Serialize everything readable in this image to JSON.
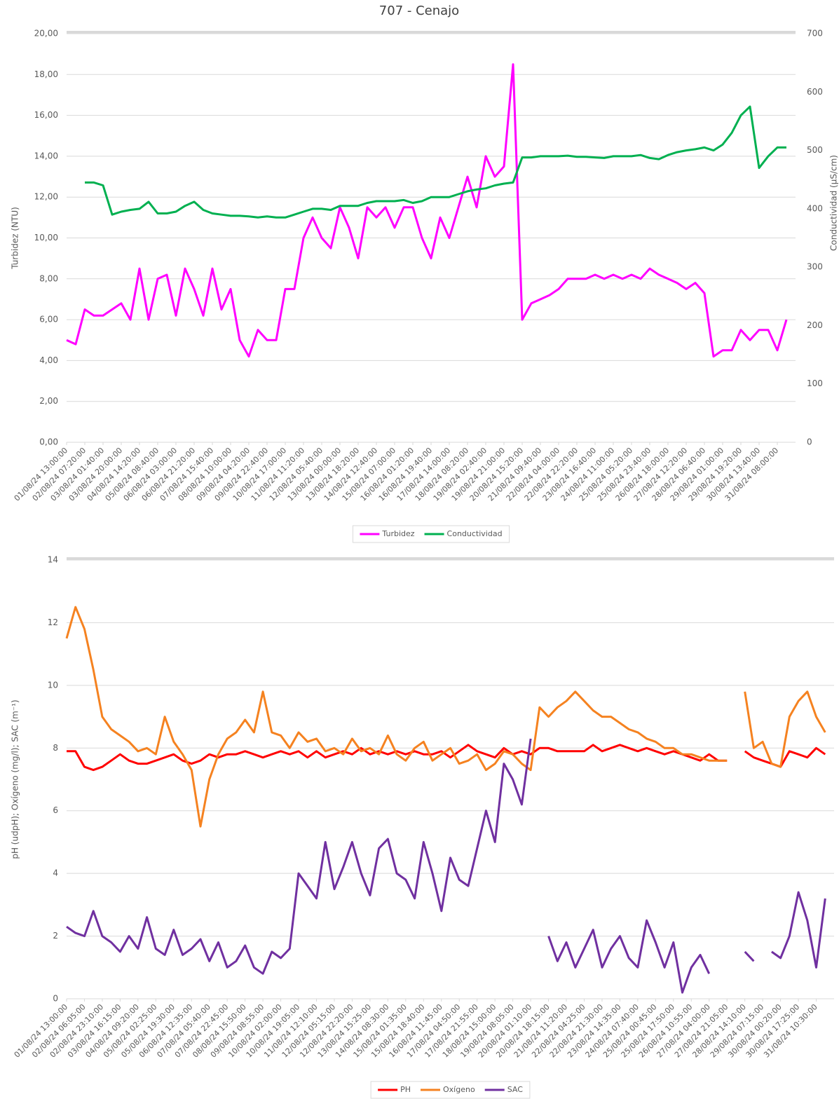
{
  "chart_data": [
    {
      "type": "line",
      "title": "707 - Cenajo",
      "ylabel": "Turbidez (NTU)",
      "y2label": "Conductividad (µS/cm)",
      "categories": [
        "01/08/24 13:00:00",
        null,
        "02/08/24 07:20:00",
        null,
        "03/08/24 01:40:00",
        null,
        "03/08/24 20:00:00",
        null,
        "04/08/24 14:20:00",
        null,
        "05/08/24 08:40:00",
        null,
        "06/08/24 03:00:00",
        null,
        "06/08/24 21:20:00",
        null,
        "07/08/24 15:40:00",
        null,
        "08/08/24 10:00:00",
        null,
        "09/08/24 04:20:00",
        null,
        "09/08/24 22:40:00",
        null,
        "10/08/24 17:00:00",
        null,
        "11/08/24 11:20:00",
        null,
        "12/08/24 05:40:00",
        null,
        "13/08/24 00:00:00",
        null,
        "13/08/24 18:20:00",
        null,
        "14/08/24 12:40:00",
        null,
        "15/08/24 07:00:00",
        null,
        "16/08/24 01:20:00",
        null,
        "16/08/24 19:40:00",
        null,
        "17/08/24 14:00:00",
        null,
        "18/08/24 08:20:00",
        null,
        "19/08/24 02:40:00",
        null,
        "19/08/24 21:00:00",
        null,
        "20/08/24 15:20:00",
        null,
        "21/08/24 09:40:00",
        null,
        "22/08/24 04:00:00",
        null,
        "22/08/24 22:20:00",
        null,
        "23/08/24 16:40:00",
        null,
        "24/08/24 11:00:00",
        null,
        "25/08/24 05:20:00",
        null,
        "25/08/24 23:40:00",
        null,
        "26/08/24 18:00:00",
        null,
        "27/08/24 12:20:00",
        null,
        "28/08/24 06:40:00",
        null,
        "29/08/24 01:00:00",
        null,
        "29/08/24 19:20:00",
        null,
        "30/08/24 13:40:00",
        null,
        "31/08/24 08:00:00",
        null
      ],
      "series": [
        {
          "name": "Turbidez",
          "color": "#ff00ff",
          "values": [
            5.0,
            4.8,
            6.5,
            6.2,
            6.2,
            6.5,
            6.8,
            6.0,
            8.5,
            6.0,
            8.0,
            8.2,
            6.2,
            8.5,
            7.5,
            6.2,
            8.5,
            6.5,
            7.5,
            5.0,
            4.2,
            5.5,
            5.0,
            5.0,
            7.5,
            7.5,
            10.0,
            11.0,
            10.0,
            9.5,
            11.5,
            10.5,
            9.0,
            11.5,
            11.0,
            11.5,
            10.5,
            11.5,
            11.5,
            10.0,
            9.0,
            11.0,
            10.0,
            11.5,
            13.0,
            11.5,
            14.0,
            13.0,
            13.5,
            18.5,
            6.0,
            6.8,
            7.0,
            7.2,
            7.5,
            8.0,
            8.0,
            8.0,
            8.2,
            8.0,
            8.2,
            8.0,
            8.2,
            8.0,
            8.5,
            8.2,
            8.0,
            7.8,
            7.5,
            7.8,
            7.3,
            4.2,
            4.5,
            4.5,
            5.5,
            5.0,
            5.5,
            5.5,
            4.5,
            6.0
          ]
        },
        {
          "name": "Conductividad",
          "color": "#00b050",
          "axis": "y2",
          "values": [
            null,
            null,
            445,
            445,
            440,
            390,
            395,
            398,
            400,
            412,
            392,
            392,
            395,
            405,
            412,
            398,
            392,
            390,
            388,
            388,
            387,
            385,
            387,
            385,
            385,
            390,
            395,
            400,
            400,
            398,
            405,
            405,
            405,
            410,
            413,
            413,
            413,
            415,
            410,
            413,
            420,
            420,
            420,
            425,
            430,
            433,
            435,
            440,
            443,
            445,
            488,
            488,
            490,
            490,
            490,
            491,
            489,
            489,
            488,
            487,
            490,
            490,
            490,
            492,
            487,
            485,
            492,
            497,
            500,
            502,
            505,
            500,
            510,
            530,
            560,
            575,
            470,
            490,
            505,
            505
          ]
        }
      ],
      "ylim": [
        0,
        20
      ],
      "yticks": [
        {
          "value": 0,
          "label": "0,00"
        },
        {
          "value": 2,
          "label": "2,00"
        },
        {
          "value": 4,
          "label": "4,00"
        },
        {
          "value": 6,
          "label": "6,00"
        },
        {
          "value": 8,
          "label": "8,00"
        },
        {
          "value": 10,
          "label": "10,00"
        },
        {
          "value": 12,
          "label": "12,00"
        },
        {
          "value": 14,
          "label": "14,00"
        },
        {
          "value": 16,
          "label": "16,00"
        },
        {
          "value": 18,
          "label": "18,00"
        },
        {
          "value": 20,
          "label": "20,00"
        }
      ],
      "y2lim": [
        0,
        700
      ],
      "y2ticks": [
        0,
        100,
        200,
        300,
        400,
        500,
        600,
        700
      ],
      "grid": true,
      "legend": "bottom"
    },
    {
      "type": "line",
      "ylabel": "pH (udpH); Oxígeno (mg/l); SAC (m⁻¹)",
      "categories": [
        "01/08/24 13:00:00",
        null,
        "02/08/24 06:05:00",
        null,
        "02/08/24 23:10:00",
        null,
        "03/08/24 16:15:00",
        null,
        "04/08/24 09:20:00",
        null,
        "05/08/24 02:25:00",
        null,
        "05/08/24 19:30:00",
        null,
        "06/08/24 12:35:00",
        null,
        "07/08/24 05:40:00",
        null,
        "07/08/24 22:45:00",
        null,
        "08/08/24 15:50:00",
        null,
        "09/08/24 08:55:00",
        null,
        "10/08/24 02:00:00",
        null,
        "10/08/24 19:05:00",
        null,
        "11/08/24 12:10:00",
        null,
        "12/08/24 05:15:00",
        null,
        "12/08/24 22:20:00",
        null,
        "13/08/24 15:25:00",
        null,
        "14/08/24 08:30:00",
        null,
        "15/08/24 01:35:00",
        null,
        "15/08/24 18:40:00",
        null,
        "16/08/24 11:45:00",
        null,
        "17/08/24 04:50:00",
        null,
        "17/08/24 21:55:00",
        null,
        "18/08/24 15:00:00",
        null,
        "19/08/24 08:05:00",
        null,
        "20/08/24 01:10:00",
        null,
        "20/08/24 18:15:00",
        null,
        "21/08/24 11:20:00",
        null,
        "22/08/24 04:25:00",
        null,
        "22/08/24 21:30:00",
        null,
        "23/08/24 14:35:00",
        null,
        "24/08/24 07:40:00",
        null,
        "25/08/24 00:45:00",
        null,
        "25/08/24 17:50:00",
        null,
        "26/08/24 10:55:00",
        null,
        "27/08/24 04:00:00",
        null,
        "27/08/24 21:05:00",
        null,
        "28/08/24 14:10:00",
        null,
        "29/08/24 07:15:00",
        null,
        "30/08/24 00:20:00",
        null,
        "30/08/24 17:25:00",
        null,
        "31/08/24 10:30:00",
        null
      ],
      "series": [
        {
          "name": "PH",
          "color": "#ff0000",
          "values": [
            7.9,
            7.9,
            7.4,
            7.3,
            7.4,
            7.6,
            7.8,
            7.6,
            7.5,
            7.5,
            7.6,
            7.7,
            7.8,
            7.6,
            7.5,
            7.6,
            7.8,
            7.7,
            7.8,
            7.8,
            7.9,
            7.8,
            7.7,
            7.8,
            7.9,
            7.8,
            7.9,
            7.7,
            7.9,
            7.7,
            7.8,
            7.9,
            7.8,
            8.0,
            7.8,
            7.9,
            7.8,
            7.9,
            7.8,
            7.9,
            7.8,
            7.8,
            7.9,
            7.7,
            7.9,
            8.1,
            7.9,
            7.8,
            7.7,
            8.0,
            7.8,
            7.9,
            7.8,
            8.0,
            8.0,
            7.9,
            7.9,
            7.9,
            7.9,
            8.1,
            7.9,
            8.0,
            8.1,
            8.0,
            7.9,
            8.0,
            7.9,
            7.8,
            7.9,
            7.8,
            7.7,
            7.6,
            7.8,
            7.6,
            7.6,
            null,
            7.9,
            7.7,
            7.6,
            7.5,
            7.4,
            7.9,
            7.8,
            7.7,
            8.0,
            7.8
          ]
        },
        {
          "name": "Oxígeno",
          "color": "#f58220",
          "values": [
            11.5,
            12.5,
            11.8,
            10.5,
            9.0,
            8.6,
            8.4,
            8.2,
            7.9,
            8.0,
            7.8,
            9.0,
            8.2,
            7.8,
            7.3,
            5.5,
            7.0,
            7.8,
            8.3,
            8.5,
            8.9,
            8.5,
            9.8,
            8.5,
            8.4,
            8.0,
            8.5,
            8.2,
            8.3,
            7.9,
            8.0,
            7.8,
            8.3,
            7.9,
            8.0,
            7.8,
            8.4,
            7.8,
            7.6,
            8.0,
            8.2,
            7.6,
            7.8,
            8.0,
            7.5,
            7.6,
            7.8,
            7.3,
            7.5,
            7.9,
            7.8,
            7.5,
            7.3,
            9.3,
            9.0,
            9.3,
            9.5,
            9.8,
            9.5,
            9.2,
            9.0,
            9.0,
            8.8,
            8.6,
            8.5,
            8.3,
            8.2,
            8.0,
            8.0,
            7.8,
            7.8,
            7.7,
            7.6,
            7.6,
            7.6,
            null,
            9.8,
            8.0,
            8.2,
            7.5,
            7.4,
            9.0,
            9.5,
            9.8,
            9.0,
            8.5
          ]
        },
        {
          "name": "SAC",
          "color": "#7030a0",
          "values": [
            2.3,
            2.1,
            2.0,
            2.8,
            2.0,
            1.8,
            1.5,
            2.0,
            1.6,
            2.6,
            1.6,
            1.4,
            2.2,
            1.4,
            1.6,
            1.9,
            1.2,
            1.8,
            1.0,
            1.2,
            1.7,
            1.0,
            0.8,
            1.5,
            1.3,
            1.6,
            4.0,
            3.6,
            3.2,
            5.0,
            3.5,
            4.2,
            5.0,
            4.0,
            3.3,
            4.8,
            5.1,
            4.0,
            3.8,
            3.2,
            5.0,
            4.0,
            2.8,
            4.5,
            3.8,
            3.6,
            4.8,
            6.0,
            5.0,
            7.5,
            7.0,
            6.2,
            8.3,
            null,
            2.0,
            1.2,
            1.8,
            1.0,
            1.6,
            2.2,
            1.0,
            1.6,
            2.0,
            1.3,
            1.0,
            2.5,
            1.8,
            1.0,
            1.8,
            0.2,
            1.0,
            1.4,
            0.8,
            null,
            null,
            null,
            1.5,
            1.2,
            null,
            1.5,
            1.3,
            2.0,
            3.4,
            2.5,
            1.0,
            3.2
          ]
        }
      ],
      "ylim": [
        0,
        14
      ],
      "yticks": [
        0,
        2,
        4,
        6,
        8,
        10,
        12,
        14
      ],
      "grid": true,
      "legend": "bottom"
    }
  ]
}
